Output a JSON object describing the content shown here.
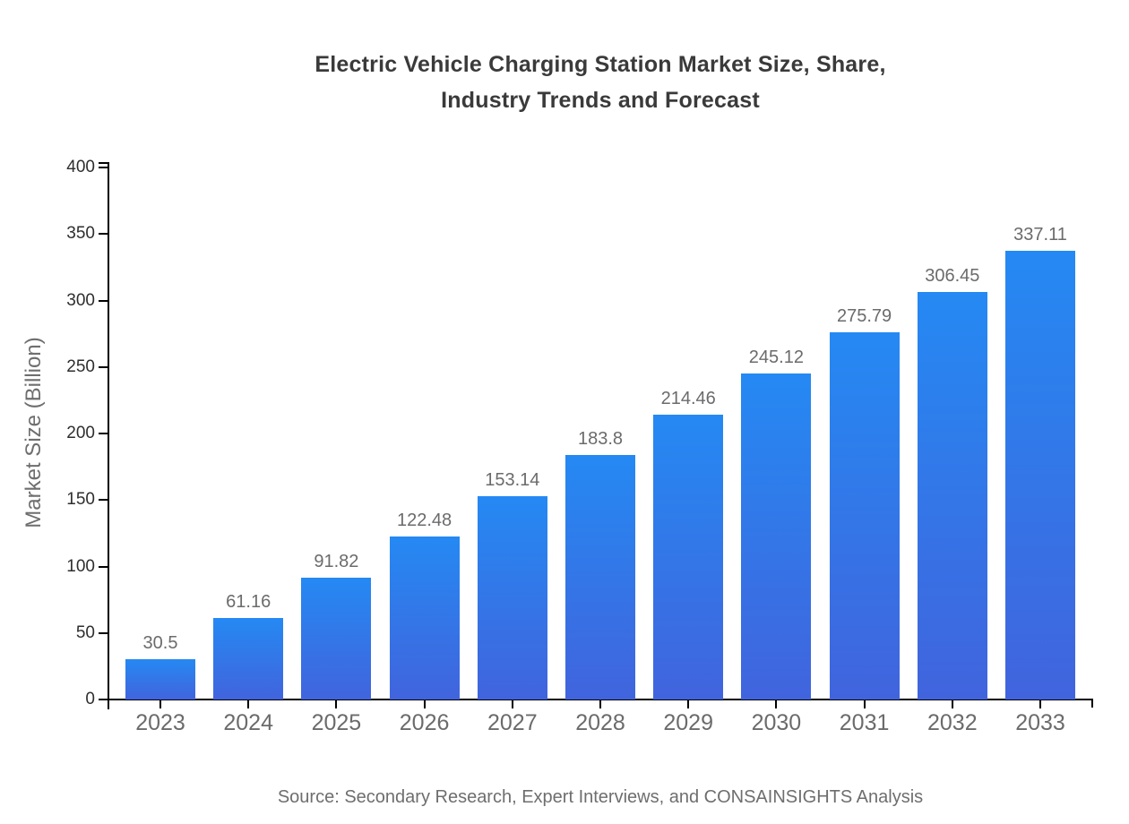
{
  "chart_data": {
    "type": "bar",
    "title": "Electric Vehicle Charging Station Market Size, Share,\nIndustry Trends and Forecast",
    "categories": [
      "2023",
      "2024",
      "2025",
      "2026",
      "2027",
      "2028",
      "2029",
      "2030",
      "2031",
      "2032",
      "2033"
    ],
    "values": [
      30.5,
      61.16,
      91.82,
      122.48,
      153.14,
      183.8,
      214.46,
      245.12,
      275.79,
      306.45,
      337.11
    ],
    "value_labels": [
      "30.5",
      "61.16",
      "91.82",
      "122.48",
      "153.14",
      "183.8",
      "214.46",
      "245.12",
      "275.79",
      "306.45",
      "337.11"
    ],
    "xlabel": "",
    "ylabel": "Market Size (Billion)",
    "ylim": [
      0,
      400
    ],
    "ytick_step": 50,
    "ytick_labels": [
      "0",
      "50",
      "100",
      "150",
      "200",
      "250",
      "300",
      "350",
      "400"
    ],
    "grid": false,
    "legend": null,
    "colors": {
      "bar_gradient_top": "#2589f3",
      "bar_gradient_bottom": "#4164dd",
      "axis": "#000000",
      "y_tick_label": "#2e2e2e",
      "category_label": "#6b6b6b",
      "value_label": "#6b6b6b",
      "title": "#3a3a3a",
      "axis_title": "#6e6e6e",
      "background": "#ffffff"
    }
  },
  "source": "Source: Secondary Research, Expert Interviews, and CONSAINSIGHTS Analysis"
}
